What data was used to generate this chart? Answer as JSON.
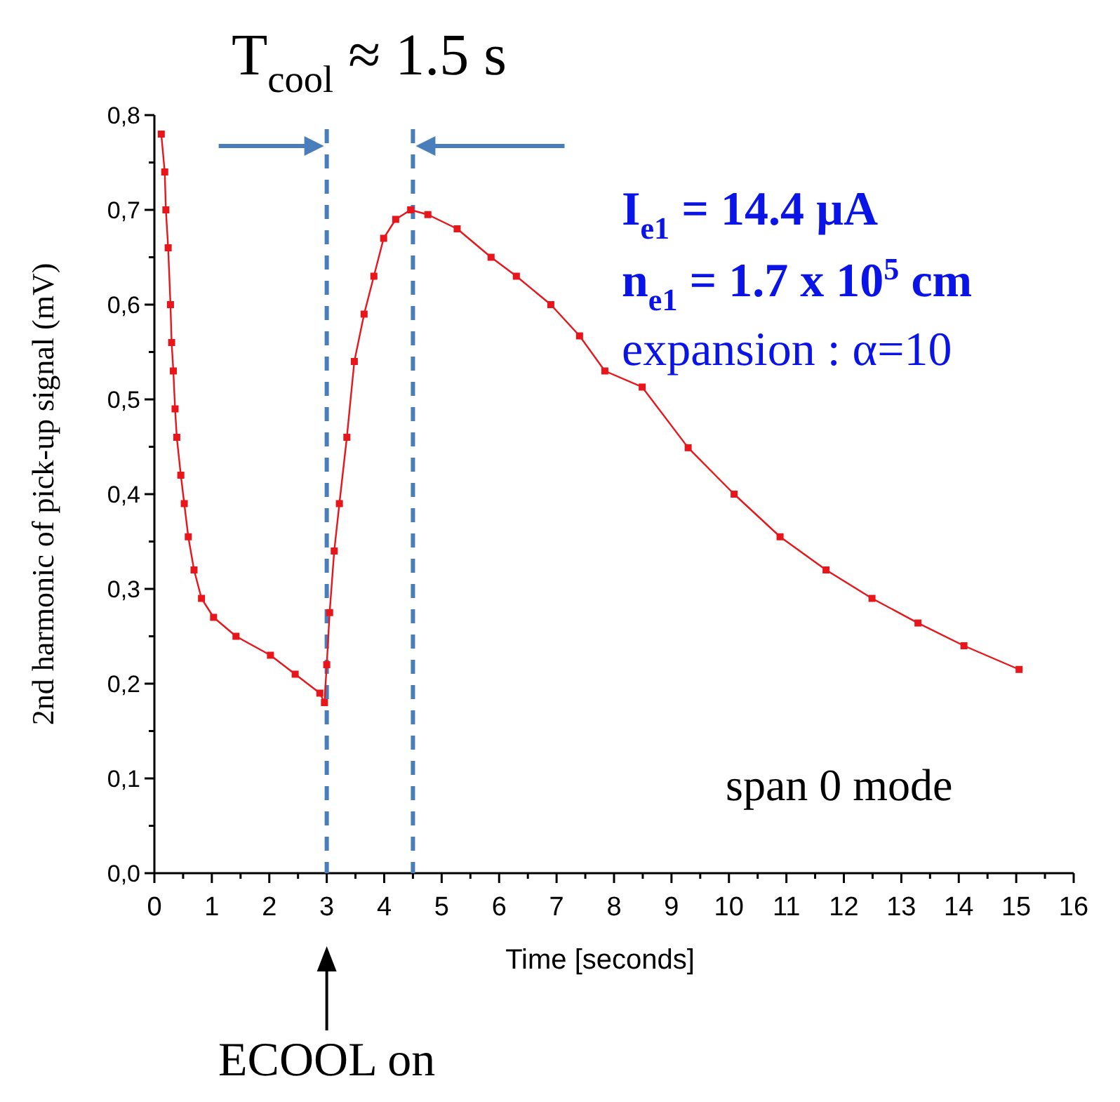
{
  "chart_data": {
    "type": "line",
    "title": "T$_{cool}$ ≈ 1.5 s",
    "xlabel": "Time [seconds]",
    "ylabel": "2nd harmonic  of  pick-up signal (mV)",
    "x": [
      0.12,
      0.18,
      0.2,
      0.24,
      0.28,
      0.3,
      0.33,
      0.36,
      0.39,
      0.46,
      0.52,
      0.59,
      0.69,
      0.82,
      1.03,
      1.42,
      2.02,
      2.45,
      2.88,
      2.96,
      3.0,
      3.05,
      3.13,
      3.22,
      3.35,
      3.48,
      3.65,
      3.82,
      3.99,
      4.2,
      4.46,
      4.76,
      5.27,
      5.86,
      6.3,
      6.9,
      7.4,
      7.84,
      8.49,
      9.29,
      10.09,
      10.89,
      11.69,
      12.49,
      13.29,
      14.09,
      15.05
    ],
    "series": [
      {
        "color": "#e8161a",
        "values": [
          0.78,
          0.74,
          0.7,
          0.66,
          0.6,
          0.56,
          0.53,
          0.49,
          0.46,
          0.42,
          0.39,
          0.355,
          0.32,
          0.29,
          0.27,
          0.25,
          0.23,
          0.21,
          0.19,
          0.18,
          0.22,
          0.275,
          0.34,
          0.39,
          0.46,
          0.54,
          0.59,
          0.63,
          0.67,
          0.69,
          0.7,
          0.695,
          0.68,
          0.65,
          0.63,
          0.6,
          0.567,
          0.53,
          0.513,
          0.449,
          0.4,
          0.355,
          0.32,
          0.29,
          0.264,
          0.24,
          0.215
        ]
      }
    ],
    "marker": "square",
    "line_style": "solid",
    "xlim": [
      0,
      16
    ],
    "xticks": [
      0,
      1,
      2,
      3,
      4,
      5,
      6,
      7,
      8,
      9,
      10,
      11,
      12,
      13,
      14,
      15,
      16,
      {
        "value": 0.5,
        "label": null
      },
      {
        "value": 1.5,
        "label": null
      },
      {
        "value": 2.5,
        "label": null
      },
      {
        "value": 3.5,
        "label": null
      },
      {
        "value": 4.5,
        "label": null
      },
      {
        "value": 5.5,
        "label": null
      },
      {
        "value": 6.5,
        "label": null
      },
      {
        "value": 7.5,
        "label": null
      },
      {
        "value": 8.5,
        "label": null
      },
      {
        "value": 9.5,
        "label": null
      },
      {
        "value": 10.5,
        "label": null
      },
      {
        "value": 11.5,
        "label": null
      },
      {
        "value": 12.5,
        "label": null
      },
      {
        "value": 13.5,
        "label": null
      },
      {
        "value": 14.5,
        "label": null
      },
      {
        "value": 15.5,
        "label": null
      }
    ],
    "ylim": [
      0,
      0.8
    ],
    "yticks": [
      {
        "value": 0,
        "label": "0,0"
      },
      {
        "value": 0.1,
        "label": "0,1"
      },
      {
        "value": 0.2,
        "label": "0,2"
      },
      {
        "value": 0.3,
        "label": "0,3"
      },
      {
        "value": 0.4,
        "label": "0,4"
      },
      {
        "value": 0.5,
        "label": "0,5"
      },
      {
        "value": 0.6,
        "label": "0,6"
      },
      {
        "value": 0.7,
        "label": "0,7"
      },
      {
        "value": 0.8,
        "label": "0,8"
      },
      {
        "value": 0.05,
        "label": null
      },
      {
        "value": 0.15,
        "label": null
      },
      {
        "value": 0.25,
        "label": null
      },
      {
        "value": 0.35,
        "label": null
      },
      {
        "value": 0.45,
        "label": null
      },
      {
        "value": 0.55,
        "label": null
      },
      {
        "value": 0.65,
        "label": null
      },
      {
        "value": 0.75,
        "label": null
      }
    ],
    "ref_lines": [
      {
        "axis": "x",
        "value": 3,
        "color": "#4a7ebb",
        "line_style": "dashed"
      },
      {
        "axis": "x",
        "value": 4.5,
        "color": "#4a7ebb",
        "line_style": "dashed"
      }
    ],
    "annotations": [
      "I$_{e1}$ = 14.4 µA",
      "n$_{e1}$ = 1.7 x 10$^{5}$ cm",
      "expansion : α=10",
      "span 0 mode",
      "ECOOL on"
    ]
  }
}
